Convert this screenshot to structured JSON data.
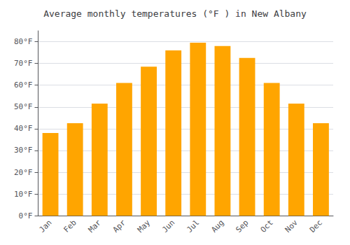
{
  "chart_data": {
    "type": "bar",
    "title": "Average monthly temperatures (°F ) in New Albany",
    "categories": [
      "Jan",
      "Feb",
      "Mar",
      "Apr",
      "May",
      "Jun",
      "Jul",
      "Aug",
      "Sep",
      "Oct",
      "Nov",
      "Dec"
    ],
    "values": [
      38,
      42.5,
      51.5,
      61,
      68.5,
      76,
      79.5,
      78,
      72.5,
      61,
      51.5,
      42.5
    ],
    "color": "#FFA500",
    "ylim": [
      0,
      85
    ],
    "yticks": [
      {
        "value": 0,
        "label": "0°F"
      },
      {
        "value": 10,
        "label": "10°F"
      },
      {
        "value": 20,
        "label": "20°F"
      },
      {
        "value": 30,
        "label": "30°F"
      },
      {
        "value": 40,
        "label": "40°F"
      },
      {
        "value": 50,
        "label": "50°F"
      },
      {
        "value": 60,
        "label": "60°F"
      },
      {
        "value": 70,
        "label": "70°F"
      },
      {
        "value": 80,
        "label": "80°F"
      }
    ],
    "grid": true
  }
}
